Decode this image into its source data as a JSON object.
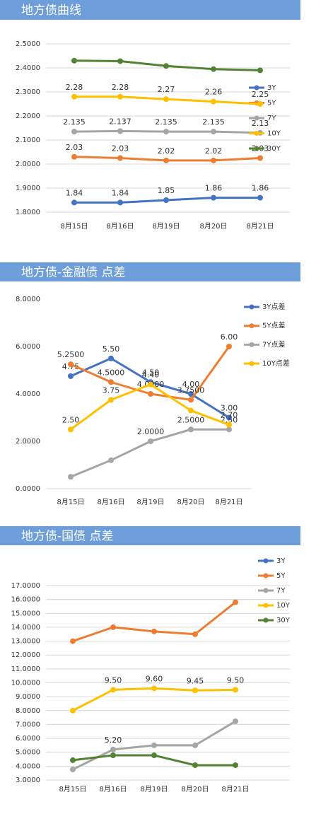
{
  "chart_data": [
    {
      "type": "line",
      "title": "地方债曲线",
      "categories": [
        "8月15日",
        "8月16日",
        "8月19日",
        "8月20日",
        "8月21日"
      ],
      "ylim": [
        1.8,
        2.5
      ],
      "yticks": [
        {
          "value": 1.8,
          "label": "1.8000"
        },
        {
          "value": 1.9,
          "label": "1.9000"
        },
        {
          "value": 2.0,
          "label": "2.0000"
        },
        {
          "value": 2.1,
          "label": "2.1000"
        },
        {
          "value": 2.2,
          "label": "2.2000"
        },
        {
          "value": 2.3,
          "label": "2.3000"
        },
        {
          "value": 2.4,
          "label": "2.4000"
        },
        {
          "value": 2.5,
          "label": "2.5000"
        }
      ],
      "grid": true,
      "legend": "right",
      "series": [
        {
          "name": "3Y",
          "color": "#4472c4",
          "values": [
            1.84,
            1.84,
            1.85,
            1.86,
            1.86
          ]
        },
        {
          "name": "5Y",
          "color": "#ed7d31",
          "values": [
            2.03,
            2.025,
            2.015,
            2.015,
            2.025
          ],
          "value_labels": [
            "2.03",
            "2.03",
            "2.02",
            "2.02",
            "2.03"
          ]
        },
        {
          "name": "7Y",
          "color": "#a5a5a5",
          "values": [
            2.135,
            2.137,
            2.135,
            2.135,
            2.13
          ]
        },
        {
          "name": "10Y",
          "color": "#ffc000",
          "values": [
            2.28,
            2.28,
            2.27,
            2.26,
            2.25
          ]
        },
        {
          "name": "30Y",
          "color": "#548235",
          "values": [
            2.43,
            2.428,
            2.408,
            2.395,
            2.39
          ],
          "show_labels": false
        }
      ]
    },
    {
      "type": "line",
      "title": "地方债-金融债 点差",
      "categories": [
        "8月15日",
        "8月16日",
        "8月19日",
        "8月20日",
        "8月21日"
      ],
      "ylim": [
        0,
        8
      ],
      "yticks": [
        {
          "value": 0,
          "label": "0.0000"
        },
        {
          "value": 2,
          "label": "2.0000"
        },
        {
          "value": 4,
          "label": "4.0000"
        },
        {
          "value": 6,
          "label": "6.0000"
        },
        {
          "value": 8,
          "label": "8.0000"
        }
      ],
      "grid": false,
      "legend": "right",
      "series": [
        {
          "name": "3Y点差",
          "color": "#4472c4",
          "values": [
            4.75,
            5.5,
            4.5,
            4.0,
            3.0
          ],
          "value_labels": [
            "4.75",
            "5.50",
            "4.50",
            "4.00",
            "3.00"
          ]
        },
        {
          "name": "5Y点差",
          "color": "#ed7d31",
          "values": [
            5.25,
            4.5,
            4.0,
            3.75,
            6.0
          ],
          "value_labels": [
            "5.2500",
            "4.5000",
            "4.0000",
            "3.7500",
            "6.00"
          ]
        },
        {
          "name": "7Y点差",
          "color": "#a5a5a5",
          "values": [
            0.5,
            1.2,
            2.0,
            2.5,
            2.5
          ],
          "value_labels": [
            null,
            null,
            "2.0000",
            "2.5000",
            "2.50"
          ]
        },
        {
          "name": "10Y点差",
          "color": "#ffc000",
          "values": [
            2.5,
            3.75,
            4.4,
            3.3,
            2.7
          ],
          "value_labels": [
            "2.50",
            "3.75",
            "4.40",
            null,
            "2.70"
          ]
        }
      ]
    },
    {
      "type": "line",
      "title": "地方债-国债 点差",
      "categories": [
        "8月15日",
        "8月16日",
        "8月19日",
        "8月20日",
        "8月21日"
      ],
      "ylim": [
        3,
        17
      ],
      "yticks": [
        {
          "value": 3,
          "label": "3.0000"
        },
        {
          "value": 4,
          "label": "4.0000"
        },
        {
          "value": 5,
          "label": "5.0000"
        },
        {
          "value": 6,
          "label": "6.0000"
        },
        {
          "value": 7,
          "label": "7.0000"
        },
        {
          "value": 8,
          "label": "8.0000"
        },
        {
          "value": 9,
          "label": "9.0000"
        },
        {
          "value": 10,
          "label": "10.0000"
        },
        {
          "value": 11,
          "label": "11.0000"
        },
        {
          "value": 12,
          "label": "12.0000"
        },
        {
          "value": 13,
          "label": "13.0000"
        },
        {
          "value": 14,
          "label": "14.0000"
        },
        {
          "value": 15,
          "label": "15.0000"
        },
        {
          "value": 16,
          "label": "16.0000"
        },
        {
          "value": 17,
          "label": "17.0000"
        }
      ],
      "grid": true,
      "legend": "right",
      "series": [
        {
          "name": "3Y",
          "color": "#4472c4",
          "values": [
            null,
            null,
            null,
            null,
            null
          ]
        },
        {
          "name": "5Y",
          "color": "#ed7d31",
          "values": [
            13.0,
            14.0,
            13.7,
            13.5,
            15.8
          ],
          "show_labels": false
        },
        {
          "name": "7Y",
          "color": "#a5a5a5",
          "values": [
            3.76,
            5.2,
            5.5,
            5.5,
            7.23
          ],
          "value_labels": [
            null,
            "5.20",
            null,
            null,
            null
          ]
        },
        {
          "name": "10Y",
          "color": "#ffc000",
          "values": [
            8.0,
            9.5,
            9.6,
            9.45,
            9.5
          ],
          "value_labels": [
            null,
            "9.50",
            "9.60",
            "9.45",
            "9.50"
          ]
        },
        {
          "name": "30Y",
          "color": "#548235",
          "values": [
            4.43,
            4.78,
            4.78,
            4.07,
            4.07
          ],
          "show_labels": false
        }
      ]
    }
  ]
}
